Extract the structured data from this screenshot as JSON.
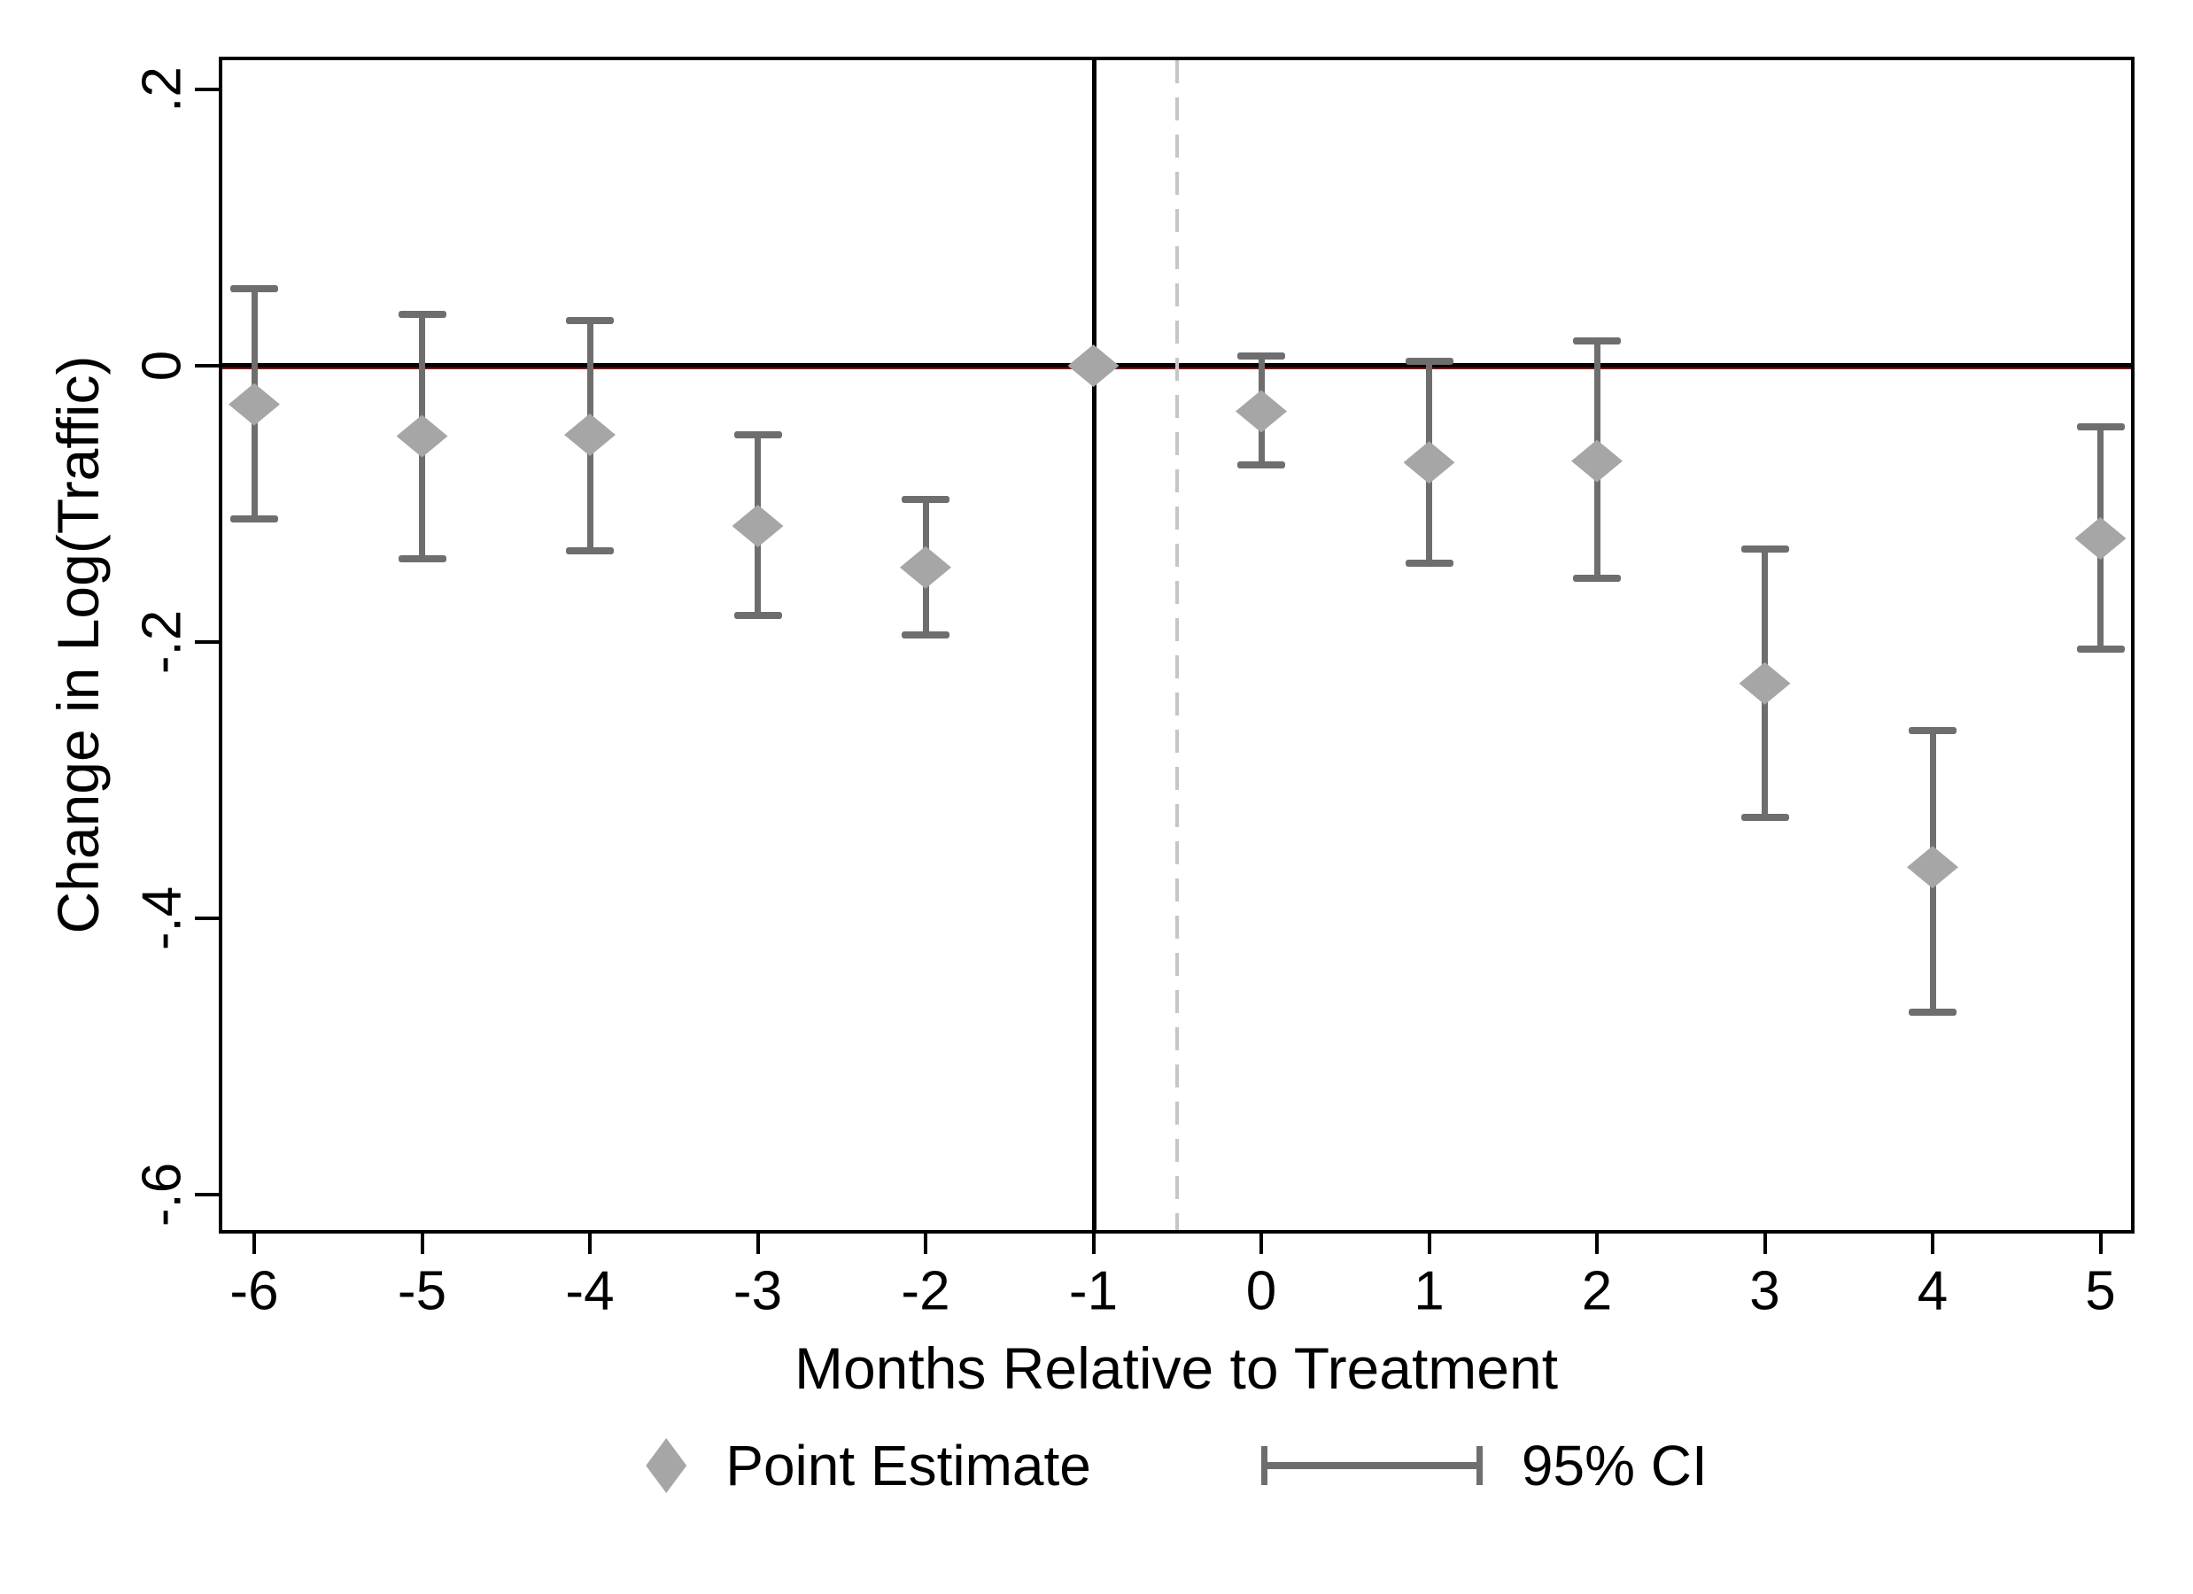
{
  "figure": {
    "y_axis_title": "Change in Log(Traffic)",
    "x_axis_title": "Months Relative to Treatment",
    "legend": {
      "point_label": "Point Estimate",
      "ci_label": "95% CI"
    }
  },
  "colors": {
    "marker_gray": "#a6a6a6",
    "errorbar_gray": "#6e6e6e",
    "dashed_line_gray": "#c6c6c6",
    "zero_line_black": "#000000",
    "zero_line_accent_red": "#8a1111",
    "axis_black": "#000000"
  },
  "chart_data": {
    "type": "scatter",
    "title": "",
    "xlabel": "Months Relative to Treatment",
    "ylabel": "Change in Log(Traffic)",
    "x": [
      -6,
      -5,
      -4,
      -3,
      -2,
      -1,
      0,
      1,
      2,
      3,
      4,
      5
    ],
    "x_tick_labels": [
      "-6",
      "-5",
      "-4",
      "-3",
      "-2",
      "-1",
      "0",
      "1",
      "2",
      "3",
      "4",
      "5"
    ],
    "series": [
      {
        "name": "Point Estimate",
        "marker": "diamond",
        "values": [
          -0.028,
          -0.051,
          -0.05,
          -0.116,
          -0.146,
          0.0,
          -0.033,
          -0.07,
          -0.069,
          -0.23,
          -0.363,
          -0.125
        ]
      },
      {
        "name": "95% CI lower",
        "values": [
          -0.111,
          -0.14,
          -0.134,
          -0.181,
          -0.195,
          null,
          -0.072,
          -0.143,
          -0.154,
          -0.327,
          -0.468,
          -0.205
        ]
      },
      {
        "name": "95% CI upper",
        "values": [
          0.056,
          0.037,
          0.033,
          -0.05,
          -0.097,
          null,
          0.007,
          0.003,
          0.018,
          -0.133,
          -0.264,
          -0.044
        ]
      }
    ],
    "reference_month": -1,
    "hline_y": 0,
    "vline_solid_x": -1,
    "vline_dashed_x": -0.5,
    "y_ticks": {
      "values": [
        0.2,
        0.0,
        -0.2,
        -0.4,
        -0.6
      ],
      "labels": [
        ".2",
        "0",
        "-.2",
        "-.4",
        "-.6"
      ]
    },
    "ylim": [
      -0.63,
      0.224
    ],
    "xlim": [
      -6.21,
      5.2
    ],
    "grid": false,
    "legend_position": "bottom-center",
    "legend_entries": [
      "Point Estimate",
      "95% CI"
    ]
  }
}
